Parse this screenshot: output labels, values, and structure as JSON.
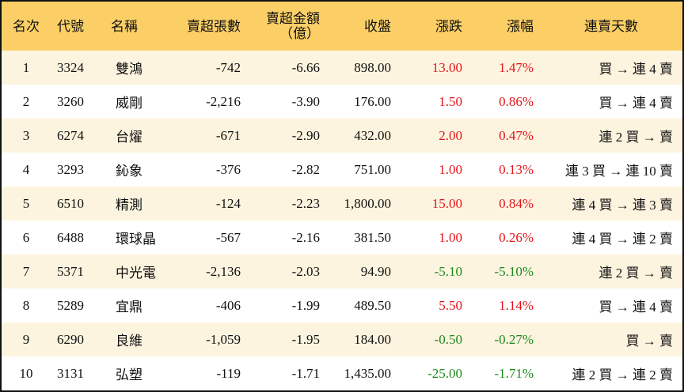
{
  "table": {
    "header": [
      "名次",
      "代號",
      "名稱",
      "賣超張數",
      "賣超金額\n（億）",
      "收盤",
      "漲跌",
      "漲幅",
      "連賣天數"
    ],
    "rows": [
      [
        "1",
        "3324",
        "雙鴻",
        "-742",
        "-6.66",
        "898.00",
        "13.00",
        "1.47%",
        "買 → 連 4 賣"
      ],
      [
        "2",
        "3260",
        "威剛",
        "-2,216",
        "-3.90",
        "176.00",
        "1.50",
        "0.86%",
        "買 → 連 4 賣"
      ],
      [
        "3",
        "6274",
        "台燿",
        "-671",
        "-2.90",
        "432.00",
        "2.00",
        "0.47%",
        "連 2 買 → 賣"
      ],
      [
        "4",
        "3293",
        "鈊象",
        "-376",
        "-2.82",
        "751.00",
        "1.00",
        "0.13%",
        "連 3 買 → 連 10 賣"
      ],
      [
        "5",
        "6510",
        "精測",
        "-124",
        "-2.23",
        "1,800.00",
        "15.00",
        "0.84%",
        "連 4 買 → 連 3 賣"
      ],
      [
        "6",
        "6488",
        "環球晶",
        "-567",
        "-2.16",
        "381.50",
        "1.00",
        "0.26%",
        "連 4 買 → 連 2 賣"
      ],
      [
        "7",
        "5371",
        "中光電",
        "-2,136",
        "-2.03",
        "94.90",
        "-5.10",
        "-5.10%",
        "連 2 買 → 賣"
      ],
      [
        "8",
        "5289",
        "宜鼎",
        "-406",
        "-1.99",
        "489.50",
        "5.50",
        "1.14%",
        "買 → 連 4 賣"
      ],
      [
        "9",
        "6290",
        "良維",
        "-1,059",
        "-1.95",
        "184.00",
        "-0.50",
        "-0.27%",
        "買 → 賣"
      ],
      [
        "10",
        "3131",
        "弘塑",
        "-119",
        "-1.71",
        "1,435.00",
        "-25.00",
        "-1.71%",
        "連 2 買 → 連 2 賣"
      ]
    ]
  }
}
